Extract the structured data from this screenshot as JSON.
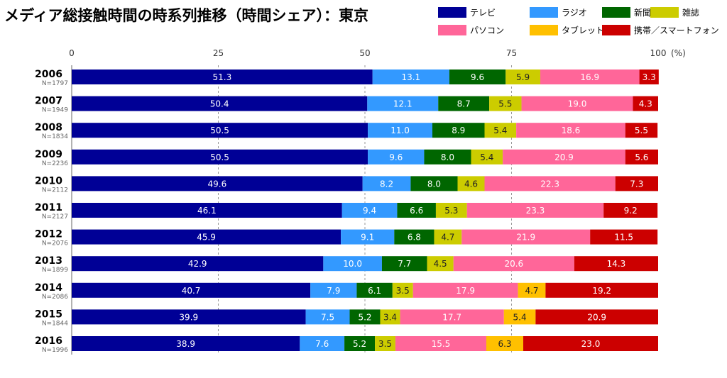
{
  "chart_data": {
    "type": "bar",
    "orientation": "horizontal",
    "stacked": true,
    "title": "メディア総接触時間の時系列推移（時間シェア）：東京",
    "x_unit": "(%)",
    "xlim": [
      0,
      100
    ],
    "x_ticks": [
      0,
      25,
      50,
      75,
      100
    ],
    "grid": "vertical dashed",
    "legend_position": "top-right",
    "categories": [
      "2006",
      "2007",
      "2008",
      "2009",
      "2010",
      "2011",
      "2012",
      "2013",
      "2014",
      "2015",
      "2016"
    ],
    "sample_sizes": [
      "N=1797",
      "N=1949",
      "N=1834",
      "N=2236",
      "N=2112",
      "N=2127",
      "N=2076",
      "N=1899",
      "N=2086",
      "N=1844",
      "N=1996"
    ],
    "series": [
      {
        "name": "テレビ",
        "color": "#000096",
        "values": [
          51.3,
          50.4,
          50.5,
          50.5,
          49.6,
          46.1,
          45.9,
          42.9,
          40.7,
          39.9,
          38.9
        ]
      },
      {
        "name": "ラジオ",
        "color": "#3399ff",
        "values": [
          13.1,
          12.1,
          11.0,
          9.6,
          8.2,
          9.4,
          9.1,
          10.0,
          7.9,
          7.5,
          7.6
        ]
      },
      {
        "name": "新聞",
        "color": "#006600",
        "values": [
          9.6,
          8.7,
          8.9,
          8.0,
          8.0,
          6.6,
          6.8,
          7.7,
          6.1,
          5.2,
          5.2
        ]
      },
      {
        "name": "雑誌",
        "color": "#cccc00",
        "values": [
          5.9,
          5.5,
          5.4,
          5.4,
          4.6,
          5.3,
          4.7,
          4.5,
          3.5,
          3.4,
          3.5
        ]
      },
      {
        "name": "パソコン",
        "color": "#ff6699",
        "values": [
          16.9,
          19.0,
          18.6,
          20.9,
          22.3,
          23.3,
          21.9,
          20.6,
          17.9,
          17.7,
          15.5
        ]
      },
      {
        "name": "タブレット端末",
        "color": "#ffc000",
        "values": [
          null,
          null,
          null,
          null,
          null,
          null,
          null,
          null,
          4.7,
          5.4,
          6.3
        ]
      },
      {
        "name": "携帯／スマートフォン",
        "color": "#cc0000",
        "values": [
          3.3,
          4.3,
          5.5,
          5.6,
          7.3,
          9.2,
          11.5,
          14.3,
          19.2,
          20.9,
          23.0
        ]
      }
    ]
  }
}
